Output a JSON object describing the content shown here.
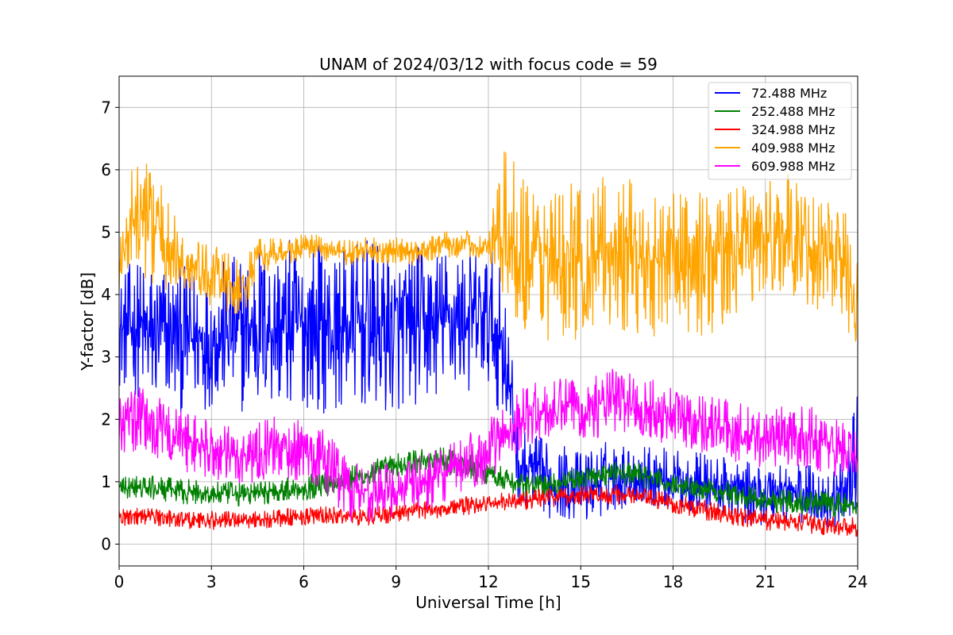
{
  "chart_data": {
    "type": "line",
    "title": "UNAM of 2024/03/12 with focus code = 59",
    "xlabel": "Universal Time [h]",
    "ylabel": "Y-factor [dB]",
    "xlim": [
      0,
      24
    ],
    "ylim": [
      -0.35,
      7.5
    ],
    "xticks": [
      0,
      3,
      6,
      9,
      12,
      15,
      18,
      21,
      24
    ],
    "yticks": [
      0,
      1,
      2,
      3,
      4,
      5,
      6,
      7
    ],
    "grid": true,
    "legend_position": "top-right",
    "series": [
      {
        "name": "  72.488 MHz",
        "color": "#0000ff",
        "x": [
          0,
          0.5,
          1,
          1.5,
          2,
          2.5,
          3,
          3.5,
          4,
          4.5,
          5,
          5.5,
          6,
          6.5,
          7,
          7.5,
          8,
          8.5,
          9,
          9.5,
          10,
          10.5,
          11,
          11.5,
          12,
          12.5,
          13,
          13.5,
          14,
          14.5,
          15,
          15.5,
          16,
          16.5,
          17,
          17.5,
          18,
          18.5,
          19,
          19.5,
          20,
          20.5,
          21,
          21.5,
          22,
          22.5,
          23,
          23.5,
          24
        ],
        "y": [
          3.4,
          3.5,
          3.3,
          3.4,
          3.3,
          3.3,
          3.3,
          3.4,
          3.4,
          3.5,
          3.5,
          3.5,
          3.5,
          3.5,
          3.4,
          3.5,
          3.5,
          3.4,
          3.4,
          3.5,
          3.5,
          3.6,
          3.6,
          3.6,
          3.6,
          3.2,
          1.2,
          1.2,
          1.0,
          1.0,
          0.9,
          1.0,
          1.1,
          1.1,
          1.1,
          1.1,
          1.0,
          1.0,
          1.0,
          0.9,
          0.9,
          0.8,
          0.8,
          0.9,
          0.8,
          0.8,
          0.7,
          0.8,
          1.5
        ],
        "band": [
          0.9,
          1.1,
          1.3,
          1.2,
          1.2,
          1.2,
          1.1,
          1.2,
          1.3,
          1.4,
          1.4,
          1.4,
          1.3,
          1.4,
          1.3,
          1.3,
          1.4,
          1.4,
          1.3,
          1.3,
          1.3,
          1.2,
          1.2,
          1.2,
          1.2,
          1.2,
          0.6,
          0.6,
          0.6,
          0.6,
          0.6,
          0.6,
          0.6,
          0.5,
          0.5,
          0.5,
          0.5,
          0.5,
          0.5,
          0.5,
          0.5,
          0.5,
          0.5,
          0.5,
          0.5,
          0.5,
          0.5,
          0.5,
          0.9
        ]
      },
      {
        "name": "252.488 MHz",
        "color": "#008000",
        "x": [
          0,
          1,
          2,
          3,
          4,
          5,
          6,
          7,
          8,
          9,
          10,
          11,
          12,
          13,
          14,
          15,
          16,
          17,
          18,
          19,
          20,
          21,
          22,
          23,
          24
        ],
        "y": [
          0.9,
          0.9,
          0.85,
          0.8,
          0.8,
          0.85,
          0.9,
          1.0,
          1.1,
          1.25,
          1.35,
          1.3,
          1.15,
          0.95,
          0.95,
          1.05,
          1.15,
          1.1,
          0.95,
          0.9,
          0.8,
          0.7,
          0.7,
          0.65,
          0.6
        ],
        "band": [
          0.2,
          0.2,
          0.2,
          0.2,
          0.2,
          0.2,
          0.2,
          0.22,
          0.22,
          0.22,
          0.22,
          0.22,
          0.2,
          0.18,
          0.18,
          0.18,
          0.2,
          0.2,
          0.18,
          0.18,
          0.18,
          0.2,
          0.2,
          0.2,
          0.2
        ]
      },
      {
        "name": "324.988 MHz",
        "color": "#ff0000",
        "x": [
          0,
          1,
          2,
          3,
          4,
          5,
          6,
          7,
          8,
          9,
          10,
          11,
          12,
          13,
          14,
          15,
          16,
          17,
          18,
          19,
          20,
          21,
          22,
          23,
          24
        ],
        "y": [
          0.45,
          0.45,
          0.4,
          0.38,
          0.4,
          0.4,
          0.45,
          0.45,
          0.45,
          0.5,
          0.55,
          0.6,
          0.65,
          0.7,
          0.75,
          0.78,
          0.8,
          0.75,
          0.65,
          0.55,
          0.45,
          0.38,
          0.35,
          0.3,
          0.28
        ],
        "band": [
          0.15,
          0.15,
          0.15,
          0.15,
          0.15,
          0.15,
          0.15,
          0.15,
          0.15,
          0.15,
          0.15,
          0.15,
          0.15,
          0.16,
          0.16,
          0.16,
          0.16,
          0.16,
          0.16,
          0.16,
          0.16,
          0.16,
          0.16,
          0.16,
          0.16
        ]
      },
      {
        "name": "409.988 MHz",
        "color": "#ffa500",
        "x": [
          0,
          0.5,
          1,
          1.5,
          2,
          2.5,
          3,
          3.5,
          4,
          4.5,
          5,
          5.5,
          6,
          6.5,
          7,
          7.5,
          8,
          8.5,
          9,
          9.5,
          10,
          10.5,
          11,
          11.5,
          12,
          12.5,
          13,
          13.5,
          14,
          14.5,
          15,
          15.5,
          16,
          16.5,
          17,
          17.5,
          18,
          18.5,
          19,
          19.5,
          20,
          20.5,
          21,
          21.5,
          22,
          22.5,
          23,
          23.5,
          24
        ],
        "y": [
          4.4,
          5.3,
          5.2,
          4.8,
          4.5,
          4.4,
          4.3,
          4.2,
          4.0,
          4.6,
          4.65,
          4.7,
          4.75,
          4.75,
          4.7,
          4.65,
          4.7,
          4.7,
          4.7,
          4.65,
          4.75,
          4.8,
          4.8,
          4.8,
          4.75,
          5.0,
          4.8,
          4.6,
          4.5,
          4.5,
          4.6,
          4.6,
          4.7,
          4.6,
          4.5,
          4.5,
          4.6,
          4.5,
          4.5,
          4.5,
          4.7,
          4.8,
          4.9,
          5.0,
          4.9,
          4.8,
          4.7,
          4.6,
          3.8
        ],
        "band": [
          0.6,
          0.9,
          1.0,
          0.8,
          0.6,
          0.5,
          0.5,
          0.5,
          0.5,
          0.3,
          0.25,
          0.22,
          0.22,
          0.22,
          0.22,
          0.22,
          0.22,
          0.22,
          0.22,
          0.22,
          0.22,
          0.22,
          0.22,
          0.22,
          0.22,
          1.3,
          1.3,
          1.3,
          1.3,
          1.3,
          1.3,
          1.3,
          1.3,
          1.3,
          1.2,
          1.2,
          1.2,
          1.2,
          1.2,
          1.1,
          1.0,
          1.0,
          1.0,
          1.0,
          1.0,
          1.0,
          1.0,
          1.0,
          0.8
        ]
      },
      {
        "name": "609.988 MHz",
        "color": "#ff00ff",
        "x": [
          0,
          0.5,
          1,
          1.5,
          2,
          2.5,
          3,
          3.5,
          4,
          4.5,
          5,
          5.5,
          6,
          6.5,
          7,
          7.5,
          8,
          8.5,
          9,
          9.5,
          10,
          10.5,
          11,
          11.5,
          12,
          12.5,
          13,
          13.5,
          14,
          14.5,
          15,
          15.5,
          16,
          16.5,
          17,
          17.5,
          18,
          18.5,
          19,
          19.5,
          20,
          20.5,
          21,
          21.5,
          22,
          22.5,
          23,
          23.5,
          24
        ],
        "y": [
          1.9,
          2.0,
          1.9,
          1.8,
          1.7,
          1.6,
          1.5,
          1.4,
          1.4,
          1.5,
          1.55,
          1.5,
          1.5,
          1.4,
          1.2,
          0.9,
          0.85,
          0.85,
          0.9,
          0.95,
          1.0,
          1.1,
          1.2,
          1.35,
          1.5,
          1.75,
          2.0,
          2.1,
          2.1,
          2.2,
          2.2,
          2.2,
          2.3,
          2.3,
          2.2,
          2.1,
          2.1,
          2.0,
          1.95,
          1.9,
          1.8,
          1.7,
          1.7,
          1.75,
          1.7,
          1.7,
          1.6,
          1.55,
          1.3
        ],
        "band": [
          0.55,
          0.55,
          0.55,
          0.5,
          0.5,
          0.5,
          0.5,
          0.5,
          0.5,
          0.5,
          0.5,
          0.5,
          0.5,
          0.5,
          0.55,
          0.55,
          0.5,
          0.45,
          0.45,
          0.45,
          0.45,
          0.45,
          0.45,
          0.5,
          0.5,
          0.5,
          0.5,
          0.5,
          0.5,
          0.5,
          0.5,
          0.5,
          0.55,
          0.55,
          0.5,
          0.5,
          0.5,
          0.5,
          0.5,
          0.5,
          0.5,
          0.5,
          0.5,
          0.5,
          0.5,
          0.5,
          0.5,
          0.5,
          0.5
        ]
      }
    ]
  }
}
